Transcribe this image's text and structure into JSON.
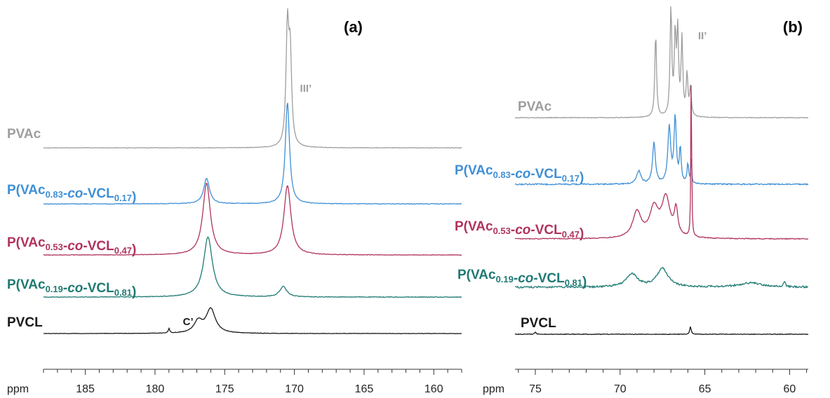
{
  "colors": {
    "PVAc": "#9e9e9e",
    "P83": "#3f8fd6",
    "P53": "#b0335e",
    "P19": "#1f7a73",
    "PVCL": "#1a1a1a",
    "axis": "#333333"
  },
  "chart_data": [
    {
      "type": "line",
      "panel_label": "(a)",
      "xlabel": "ppm",
      "xlim": [
        188,
        158
      ],
      "x_reversed": true,
      "x_ticks": [
        185,
        180,
        175,
        170,
        165,
        160
      ],
      "grid": false,
      "legend": "none; series labeled directly left of each trace",
      "series": [
        {
          "key": "PVAc",
          "name_parts": [
            [
              "PVAc",
              ""
            ]
          ],
          "peaks": [
            {
              "x": 170.5,
              "rel_intensity": 1.0,
              "width": 0.12
            },
            {
              "x": 170.3,
              "rel_intensity": 0.75,
              "width": 0.12
            }
          ]
        },
        {
          "key": "P83",
          "name_parts": [
            [
              "P(VAc",
              ""
            ],
            [
              "0.83",
              "sub"
            ],
            [
              "-",
              ""
            ],
            [
              "co",
              "it"
            ],
            [
              "-VCL",
              ""
            ],
            [
              "0.17",
              "sub"
            ],
            [
              ")",
              ""
            ]
          ],
          "peaks": [
            {
              "x": 176.3,
              "rel_intensity": 0.22,
              "width": 0.25
            },
            {
              "x": 170.5,
              "rel_intensity": 0.88,
              "width": 0.18
            }
          ]
        },
        {
          "key": "P53",
          "name_parts": [
            [
              "P(VAc",
              ""
            ],
            [
              "0.53",
              "sub"
            ],
            [
              "-",
              ""
            ],
            [
              "co",
              "it"
            ],
            [
              "-VCL",
              ""
            ],
            [
              "0.47",
              "sub"
            ],
            [
              ")",
              ""
            ]
          ],
          "peaks": [
            {
              "x": 176.3,
              "rel_intensity": 0.62,
              "width": 0.33
            },
            {
              "x": 170.5,
              "rel_intensity": 0.6,
              "width": 0.3
            }
          ]
        },
        {
          "key": "P19",
          "name_parts": [
            [
              "P(VAc",
              ""
            ],
            [
              "0.19",
              "sub"
            ],
            [
              "-",
              ""
            ],
            [
              "co",
              "it"
            ],
            [
              "-VCL",
              ""
            ],
            [
              "0.81",
              "sub"
            ],
            [
              ")",
              ""
            ]
          ],
          "peaks": [
            {
              "x": 176.2,
              "rel_intensity": 0.52,
              "width": 0.38
            },
            {
              "x": 170.8,
              "rel_intensity": 0.09,
              "width": 0.3
            }
          ]
        },
        {
          "key": "PVCL",
          "name_parts": [
            [
              "PVCL",
              ""
            ]
          ],
          "peaks": [
            {
              "x": 176.0,
              "rel_intensity": 0.21,
              "width": 0.4
            },
            {
              "x": 176.9,
              "rel_intensity": 0.1,
              "width": 0.35
            },
            {
              "x": 179.0,
              "rel_intensity": 0.04,
              "width": 0.06
            }
          ]
        }
      ],
      "annotations": [
        {
          "text": "III’",
          "x": 169.6,
          "series": "PVAc"
        },
        {
          "text": "C’",
          "x": 178.0,
          "series": "PVCL"
        }
      ]
    },
    {
      "type": "line",
      "panel_label": "(b)",
      "xlabel": "ppm",
      "xlim": [
        76.2,
        58.9
      ],
      "x_reversed": true,
      "x_ticks": [
        75,
        70,
        65,
        60
      ],
      "grid": false,
      "legend": "none; series labeled directly left of each trace",
      "series": [
        {
          "key": "PVAc",
          "name_parts": [
            [
              "PVAc",
              ""
            ]
          ],
          "peaks": [
            {
              "x": 67.9,
              "rel_intensity": 0.78,
              "width": 0.06
            },
            {
              "x": 67.0,
              "rel_intensity": 1.0,
              "width": 0.06
            },
            {
              "x": 66.75,
              "rel_intensity": 0.72,
              "width": 0.06
            },
            {
              "x": 66.6,
              "rel_intensity": 0.75,
              "width": 0.06
            },
            {
              "x": 66.35,
              "rel_intensity": 0.7,
              "width": 0.06
            },
            {
              "x": 66.05,
              "rel_intensity": 0.38,
              "width": 0.06
            },
            {
              "x": 65.85,
              "rel_intensity": 0.25,
              "width": 0.06
            }
          ]
        },
        {
          "key": "P83",
          "name_parts": [
            [
              "P(VAc",
              ""
            ],
            [
              "0.83",
              "sub"
            ],
            [
              "-",
              ""
            ],
            [
              "co",
              "it"
            ],
            [
              "-VCL",
              ""
            ],
            [
              "0.17",
              "sub"
            ],
            [
              ")",
              ""
            ]
          ],
          "peaks": [
            {
              "x": 68.9,
              "rel_intensity": 0.12,
              "width": 0.15
            },
            {
              "x": 68.0,
              "rel_intensity": 0.38,
              "width": 0.1
            },
            {
              "x": 67.1,
              "rel_intensity": 0.52,
              "width": 0.1
            },
            {
              "x": 66.75,
              "rel_intensity": 0.6,
              "width": 0.08
            },
            {
              "x": 66.45,
              "rel_intensity": 0.32,
              "width": 0.06
            },
            {
              "x": 66.0,
              "rel_intensity": 0.18,
              "width": 0.06
            },
            {
              "x": 65.8,
              "rel_intensity": 0.24,
              "width": 0.03
            }
          ]
        },
        {
          "key": "P53",
          "name_parts": [
            [
              "P(VAc",
              ""
            ],
            [
              "0.53",
              "sub"
            ],
            [
              "-",
              ""
            ],
            [
              "co",
              "it"
            ],
            [
              "-VCL",
              ""
            ],
            [
              "0.47",
              "sub"
            ],
            [
              ")",
              ""
            ]
          ],
          "peaks": [
            {
              "x": 69.0,
              "rel_intensity": 0.24,
              "width": 0.3
            },
            {
              "x": 68.0,
              "rel_intensity": 0.26,
              "width": 0.3
            },
            {
              "x": 67.3,
              "rel_intensity": 0.36,
              "width": 0.3
            },
            {
              "x": 66.7,
              "rel_intensity": 0.24,
              "width": 0.12
            },
            {
              "x": 65.8,
              "rel_intensity": 1.7,
              "width": 0.025
            }
          ]
        },
        {
          "key": "P19",
          "name_parts": [
            [
              "P(VAc",
              ""
            ],
            [
              "0.19",
              "sub"
            ],
            [
              "-",
              ""
            ],
            [
              "co",
              "it"
            ],
            [
              "-VCL",
              ""
            ],
            [
              "0.81",
              "sub"
            ],
            [
              ")",
              ""
            ]
          ],
          "peaks": [
            {
              "x": 69.3,
              "rel_intensity": 0.12,
              "width": 0.4
            },
            {
              "x": 67.5,
              "rel_intensity": 0.17,
              "width": 0.4
            },
            {
              "x": 62.3,
              "rel_intensity": 0.04,
              "width": 0.8
            },
            {
              "x": 60.3,
              "rel_intensity": 0.05,
              "width": 0.06
            }
          ]
        },
        {
          "key": "PVCL",
          "name_parts": [
            [
              "PVCL",
              ""
            ]
          ],
          "peaks": [
            {
              "x": 75.0,
              "rel_intensity": 0.02,
              "width": 0.05
            },
            {
              "x": 65.85,
              "rel_intensity": 0.07,
              "width": 0.05
            }
          ]
        }
      ],
      "annotations": [
        {
          "text": "II’",
          "x": 65.4,
          "series": "PVAc"
        }
      ]
    }
  ]
}
